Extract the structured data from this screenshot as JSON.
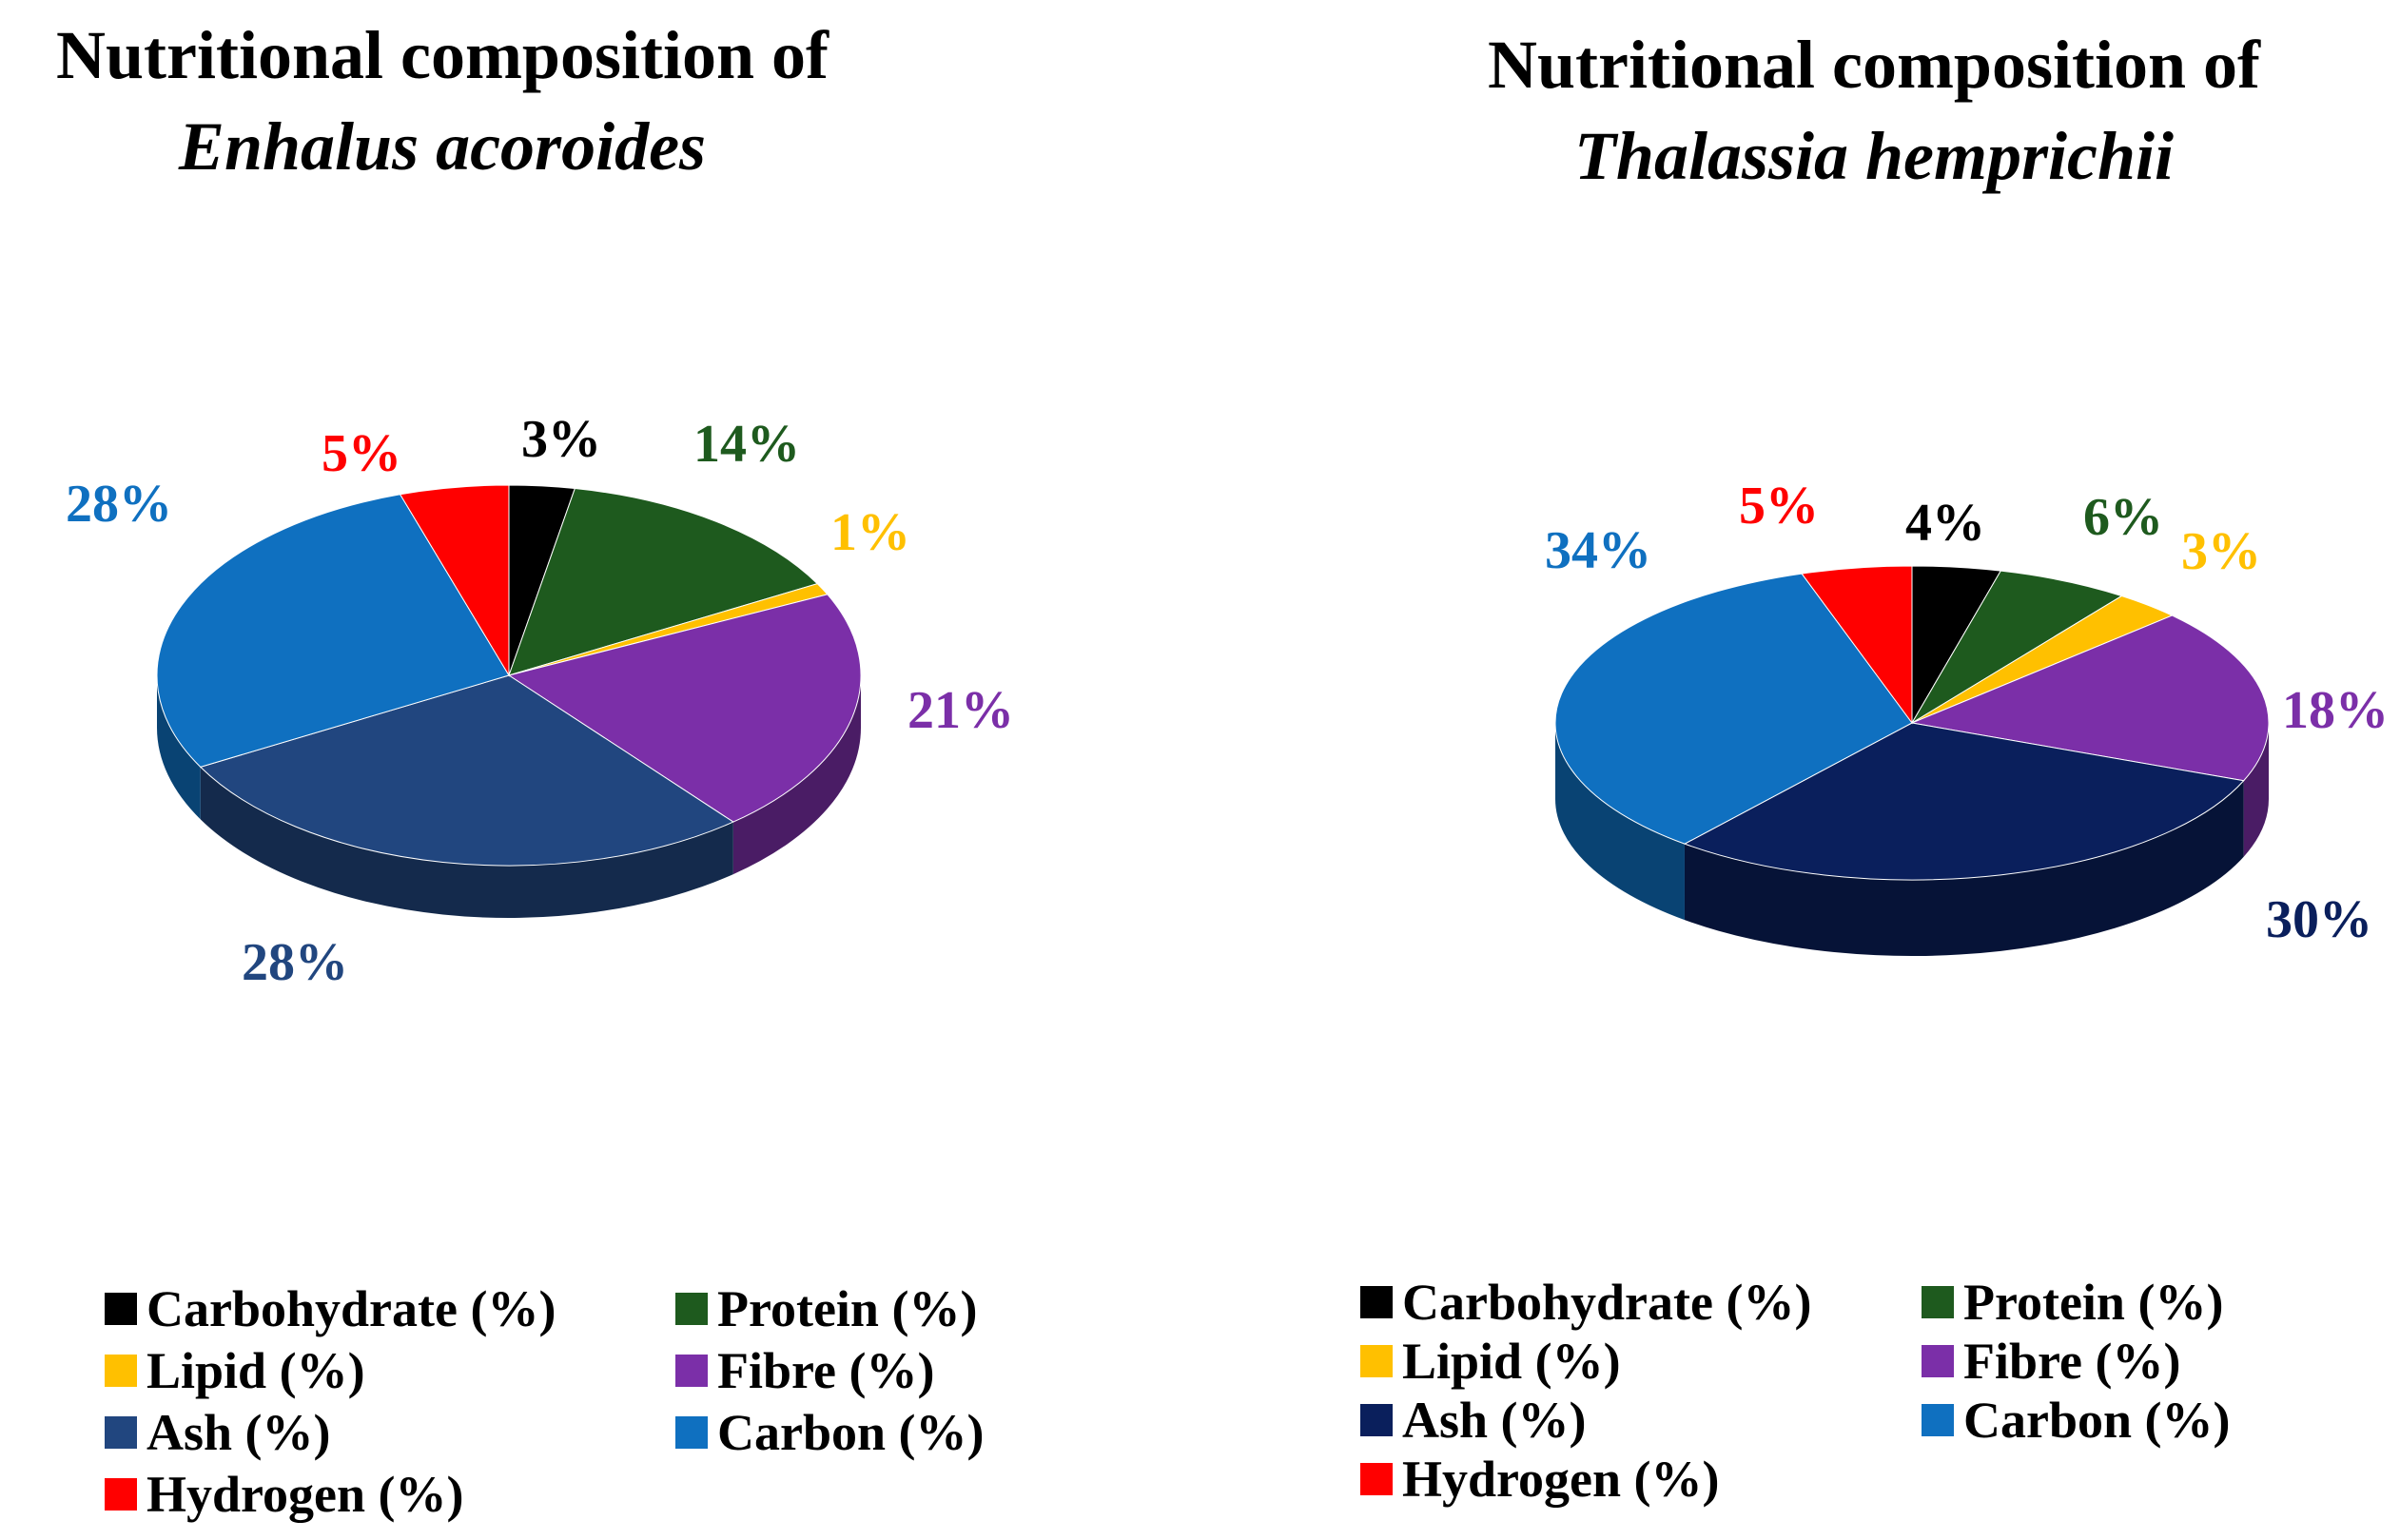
{
  "chart_data": [
    {
      "type": "pie",
      "title": "Nutritional composition of",
      "subtitle": "Enhalus acoroides",
      "categories": [
        "Carbohydrate (%)",
        "Protein (%)",
        "Lipid (%)",
        "Fibre (%)",
        "Ash (%)",
        "Carbon (%)",
        "Hydrogen (%)"
      ],
      "values": [
        3,
        14,
        1,
        21,
        28,
        28,
        5
      ],
      "labels": [
        "3%",
        "14%",
        "1%",
        "21%",
        "28%",
        "28%",
        "5%"
      ],
      "colors": [
        "#000000",
        "#1e5a1e",
        "#ffc000",
        "#7b2fa8",
        "#21467f",
        "#0f70c0",
        "#ff0000"
      ],
      "legend": "bottom"
    },
    {
      "type": "pie",
      "title": "Nutritional composition of",
      "subtitle": "Thalassia hemprichii",
      "categories": [
        "Carbohydrate (%)",
        "Protein (%)",
        "Lipid (%)",
        "Fibre (%)",
        "Ash (%)",
        "Carbon (%)",
        "Hydrogen (%)"
      ],
      "values": [
        4,
        6,
        3,
        18,
        30,
        34,
        5
      ],
      "labels": [
        "4%",
        "6%",
        "3%",
        "18%",
        "30%",
        "34%",
        "5%"
      ],
      "colors": [
        "#000000",
        "#1e5a1e",
        "#ffc000",
        "#7b2fa8",
        "#0a1f5c",
        "#0f70c0",
        "#ff0000"
      ],
      "legend": "bottom"
    }
  ]
}
